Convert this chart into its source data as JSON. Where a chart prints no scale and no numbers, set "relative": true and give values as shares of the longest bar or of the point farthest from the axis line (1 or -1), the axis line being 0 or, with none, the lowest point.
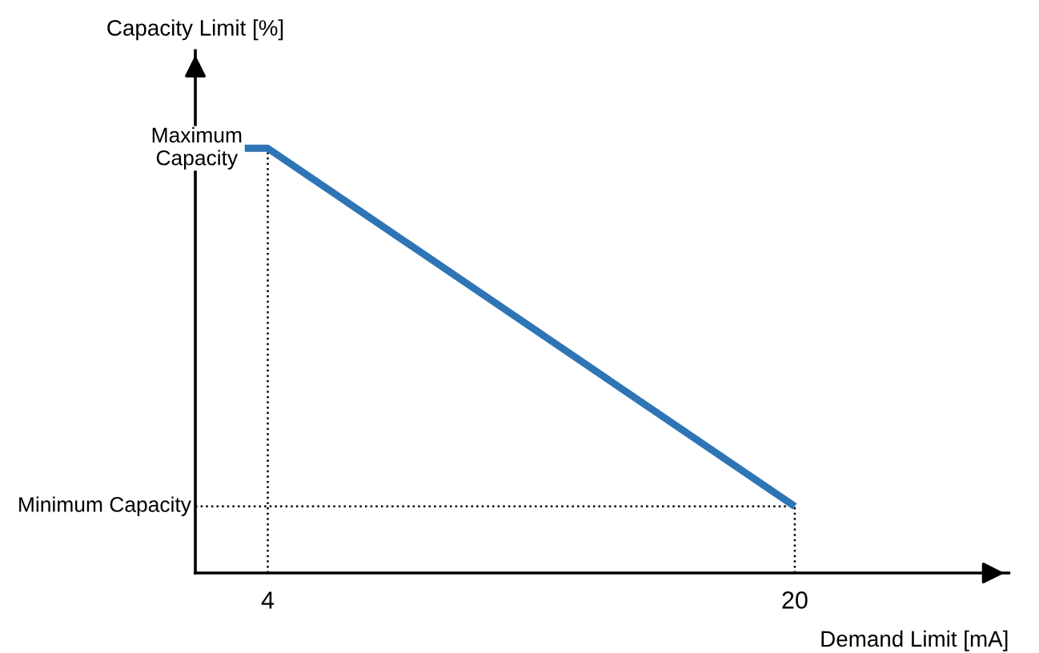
{
  "chart_data": {
    "type": "line",
    "relative": true,
    "ylabel": "Capacity Limit [%]",
    "xlabel": "Demand Limit [mA]",
    "x": [
      3.3,
      4,
      20
    ],
    "series": [
      {
        "color": "#2e75b6",
        "values": [
          1,
          1,
          0.157
        ]
      }
    ],
    "xlim": [
      1.8,
      26.5
    ],
    "xticks": [
      4,
      20
    ],
    "ref_lines": [
      {
        "axis": "y",
        "value": 0.157,
        "label": "Minimum Capacity",
        "line_style": "dotted",
        "color": "#000000"
      },
      {
        "axis": "x",
        "value": 4,
        "line_style": "dotted",
        "color": "#000000"
      },
      {
        "axis": "x",
        "value": 20,
        "line_style": "dotted",
        "color": "#000000"
      }
    ],
    "annotations": [
      {
        "text": "Maximum Capacity",
        "x": 3.3,
        "y": 1
      }
    ],
    "grid": false,
    "legend": false,
    "marker": "none",
    "line_style": "solid"
  }
}
